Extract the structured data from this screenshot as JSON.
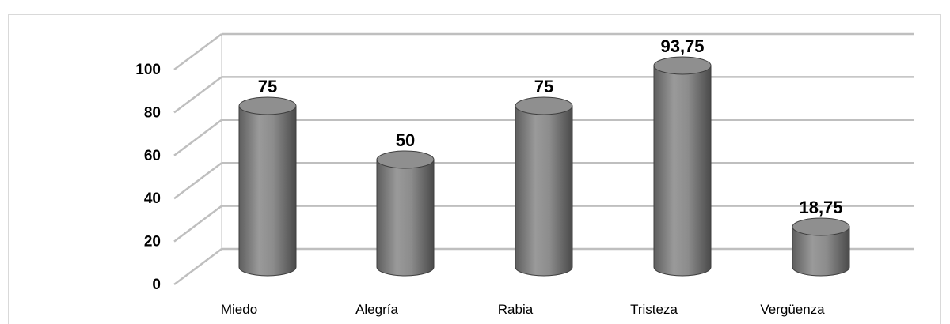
{
  "chart_data": {
    "type": "bar",
    "style": "3d-cylinder",
    "categories": [
      "Miedo",
      "Alegría",
      "Rabia",
      "Tristeza",
      "Vergüenza"
    ],
    "values": [
      75,
      50,
      75,
      93.75,
      18.75
    ],
    "data_labels": [
      "75",
      "50",
      "75",
      "93,75",
      "18,75"
    ],
    "y_ticks": [
      "0",
      "20",
      "40",
      "60",
      "80",
      "100"
    ],
    "ylim": [
      0,
      100
    ],
    "grid": true,
    "legend": "none",
    "colors": {
      "bar": "#8a8a8a",
      "grid": "#bfbfbf"
    }
  }
}
